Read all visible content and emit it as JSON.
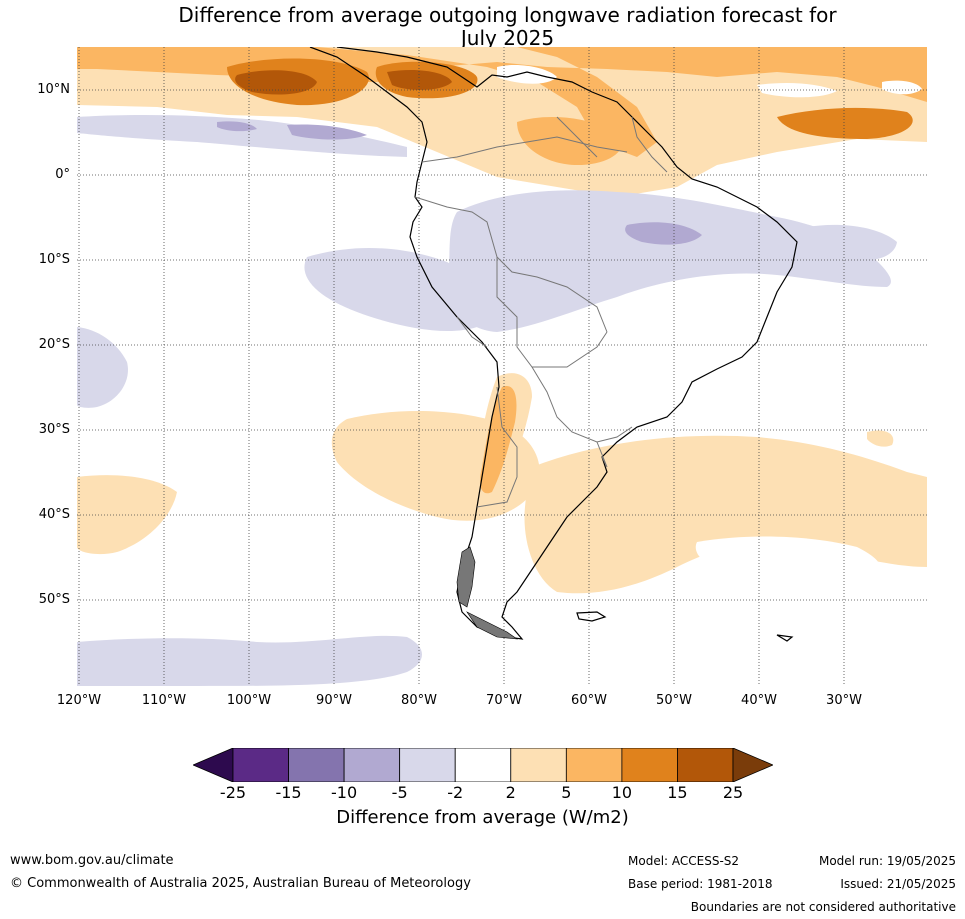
{
  "title_line1": "Difference from average outgoing longwave radiation forecast for",
  "title_line2": "July 2025",
  "lat_labels": [
    "10°N",
    "0°",
    "10°S",
    "20°S",
    "30°S",
    "40°S",
    "50°S"
  ],
  "lon_labels": [
    "120°W",
    "110°W",
    "100°W",
    "90°W",
    "80°W",
    "70°W",
    "60°W",
    "50°W",
    "40°W",
    "30°W"
  ],
  "colorbar": {
    "ticks": [
      "-25",
      "-15",
      "-10",
      "-5",
      "-2",
      "2",
      "5",
      "10",
      "15",
      "25"
    ],
    "colors": [
      "#2d0a4e",
      "#5b2a86",
      "#8474ae",
      "#b1a9d1",
      "#d8d8ea",
      "#ffffff",
      "#fde0b4",
      "#fbb662",
      "#e0821c",
      "#b25709",
      "#7a3c0a"
    ],
    "title": "Difference from average (W/m2)"
  },
  "footer": {
    "website": "www.bom.gov.au/climate",
    "copyright": "© Commonwealth of Australia 2025, Australian Bureau of Meteorology",
    "model": "Model: ACCESS-S2",
    "base_period": "Base period: 1981-2018",
    "model_run": "Model run: 19/05/2025",
    "issued": "Issued: 21/05/2025",
    "disclaimer": "Boundaries are not considered authoritative"
  }
}
